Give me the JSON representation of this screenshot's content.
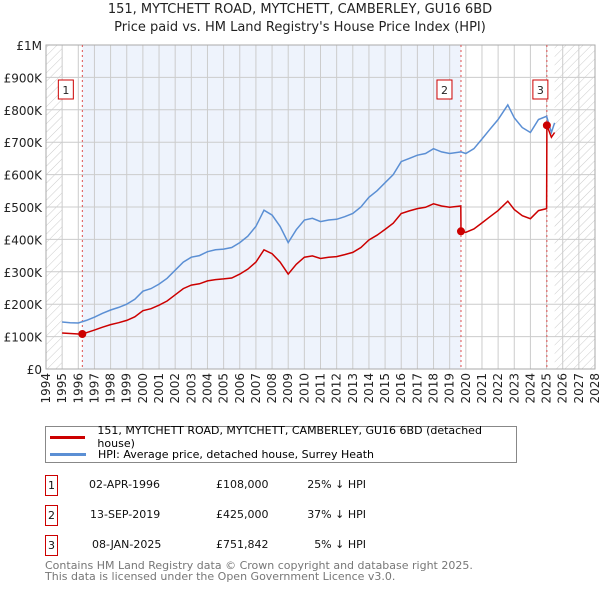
{
  "chart_data": {
    "type": "line",
    "title": "151, MYTCHETT ROAD, MYTCHETT, CAMBERLEY, GU16 6BD",
    "subtitle": "Price paid vs. HM Land Registry's House Price Index (HPI)",
    "xlim": [
      1994,
      2028
    ],
    "ylim": [
      0,
      1000000
    ],
    "x_ticks": [
      "1994",
      "1995",
      "1996",
      "1997",
      "1998",
      "1999",
      "2000",
      "2001",
      "2002",
      "2003",
      "2004",
      "2005",
      "2006",
      "2007",
      "2008",
      "2009",
      "2010",
      "2011",
      "2012",
      "2013",
      "2014",
      "2015",
      "2016",
      "2017",
      "2018",
      "2019",
      "2020",
      "2021",
      "2022",
      "2023",
      "2024",
      "2025",
      "2026",
      "2027",
      "2028"
    ],
    "y_ticks": [
      {
        "v": 0,
        "label": "£0"
      },
      {
        "v": 100000,
        "label": "£100K"
      },
      {
        "v": 200000,
        "label": "£200K"
      },
      {
        "v": 300000,
        "label": "£300K"
      },
      {
        "v": 400000,
        "label": "£400K"
      },
      {
        "v": 500000,
        "label": "£500K"
      },
      {
        "v": 600000,
        "label": "£600K"
      },
      {
        "v": 700000,
        "label": "£700K"
      },
      {
        "v": 800000,
        "label": "£800K"
      },
      {
        "v": 900000,
        "label": "£900K"
      },
      {
        "v": 1000000,
        "label": "£1M"
      }
    ],
    "grid": true,
    "series": [
      {
        "name": "151, MYTCHETT ROAD, MYTCHETT, CAMBERLEY, GU16 6BD (detached house)",
        "color": "#cc0000",
        "points": [
          [
            1995,
            111
          ],
          [
            1996,
            108
          ],
          [
            1996.25,
            108
          ],
          [
            1996.5,
            112
          ],
          [
            1997,
            120
          ],
          [
            1997.5,
            129
          ],
          [
            1998,
            137
          ],
          [
            1998.5,
            143
          ],
          [
            1999,
            150
          ],
          [
            1999.5,
            161
          ],
          [
            2000,
            180
          ],
          [
            2000.5,
            186
          ],
          [
            2001,
            197
          ],
          [
            2001.5,
            210
          ],
          [
            2002,
            229
          ],
          [
            2002.5,
            248
          ],
          [
            2003,
            259
          ],
          [
            2003.5,
            263
          ],
          [
            2004,
            272
          ],
          [
            2004.5,
            276
          ],
          [
            2005,
            278
          ],
          [
            2005.5,
            281
          ],
          [
            2006,
            293
          ],
          [
            2006.5,
            308
          ],
          [
            2007,
            330
          ],
          [
            2007.5,
            368
          ],
          [
            2008,
            356
          ],
          [
            2008.5,
            330
          ],
          [
            2009,
            293
          ],
          [
            2009.5,
            323
          ],
          [
            2010,
            345
          ],
          [
            2010.5,
            349
          ],
          [
            2011,
            341
          ],
          [
            2011.5,
            345
          ],
          [
            2012,
            347
          ],
          [
            2012.5,
            353
          ],
          [
            2013,
            360
          ],
          [
            2013.5,
            375
          ],
          [
            2014,
            398
          ],
          [
            2014.5,
            413
          ],
          [
            2015,
            431
          ],
          [
            2015.5,
            450
          ],
          [
            2016,
            480
          ],
          [
            2016.5,
            488
          ],
          [
            2017,
            495
          ],
          [
            2017.5,
            499
          ],
          [
            2018,
            510
          ],
          [
            2018.5,
            503
          ],
          [
            2019,
            499
          ],
          [
            2019.69,
            503
          ],
          [
            2019.7,
            425
          ],
          [
            2020,
            422
          ],
          [
            2020.5,
            432
          ],
          [
            2021,
            451
          ],
          [
            2021.5,
            470
          ],
          [
            2022,
            489
          ],
          [
            2022.6,
            518
          ],
          [
            2023,
            492
          ],
          [
            2023.5,
            473
          ],
          [
            2024,
            464
          ],
          [
            2024.5,
            489
          ],
          [
            2025,
            495
          ],
          [
            2025.02,
            752
          ],
          [
            2025.3,
            715
          ],
          [
            2025.5,
            730
          ]
        ]
      },
      {
        "name": "HPI: Average price, detached house, Surrey Heath",
        "color": "#5b8fd4",
        "points": [
          [
            1995,
            145
          ],
          [
            1995.5,
            143
          ],
          [
            1996,
            142
          ],
          [
            1996.5,
            150
          ],
          [
            1997,
            160
          ],
          [
            1997.5,
            172
          ],
          [
            1998,
            182
          ],
          [
            1998.5,
            190
          ],
          [
            1999,
            200
          ],
          [
            1999.5,
            215
          ],
          [
            2000,
            240
          ],
          [
            2000.5,
            248
          ],
          [
            2001,
            262
          ],
          [
            2001.5,
            280
          ],
          [
            2002,
            305
          ],
          [
            2002.5,
            330
          ],
          [
            2003,
            345
          ],
          [
            2003.5,
            350
          ],
          [
            2004,
            362
          ],
          [
            2004.5,
            368
          ],
          [
            2005,
            370
          ],
          [
            2005.5,
            375
          ],
          [
            2006,
            390
          ],
          [
            2006.5,
            410
          ],
          [
            2007,
            440
          ],
          [
            2007.5,
            490
          ],
          [
            2008,
            475
          ],
          [
            2008.5,
            440
          ],
          [
            2009,
            390
          ],
          [
            2009.5,
            430
          ],
          [
            2010,
            460
          ],
          [
            2010.5,
            465
          ],
          [
            2011,
            455
          ],
          [
            2011.5,
            460
          ],
          [
            2012,
            462
          ],
          [
            2012.5,
            470
          ],
          [
            2013,
            480
          ],
          [
            2013.5,
            500
          ],
          [
            2014,
            530
          ],
          [
            2014.5,
            550
          ],
          [
            2015,
            575
          ],
          [
            2015.5,
            600
          ],
          [
            2016,
            640
          ],
          [
            2016.5,
            650
          ],
          [
            2017,
            660
          ],
          [
            2017.5,
            665
          ],
          [
            2018,
            680
          ],
          [
            2018.5,
            670
          ],
          [
            2019,
            665
          ],
          [
            2019.7,
            670
          ],
          [
            2020,
            665
          ],
          [
            2020.5,
            680
          ],
          [
            2021,
            710
          ],
          [
            2021.5,
            740
          ],
          [
            2022,
            770
          ],
          [
            2022.6,
            815
          ],
          [
            2023,
            775
          ],
          [
            2023.5,
            745
          ],
          [
            2024,
            730
          ],
          [
            2024.5,
            770
          ],
          [
            2025,
            780
          ],
          [
            2025.3,
            730
          ],
          [
            2025.5,
            760
          ]
        ]
      }
    ],
    "value_units": "thousands GBP",
    "sales": [
      {
        "id": "1",
        "x": 1996.25,
        "y": 108
      },
      {
        "id": "2",
        "x": 2019.7,
        "y": 425
      },
      {
        "id": "3",
        "x": 2025.02,
        "y": 752
      }
    ],
    "legend": "bottom"
  },
  "table": [
    {
      "id": "1",
      "date": "02-APR-1996",
      "price": "£108,000",
      "delta": "25% ↓ HPI"
    },
    {
      "id": "2",
      "date": "13-SEP-2019",
      "price": "£425,000",
      "delta": "37% ↓ HPI"
    },
    {
      "id": "3",
      "date": "08-JAN-2025",
      "price": "£751,842",
      "delta": "5% ↓ HPI"
    }
  ],
  "footer": {
    "line1": "Contains HM Land Registry data © Crown copyright and database right 2025.",
    "line2": "This data is licensed under the Open Government Licence v3.0."
  }
}
